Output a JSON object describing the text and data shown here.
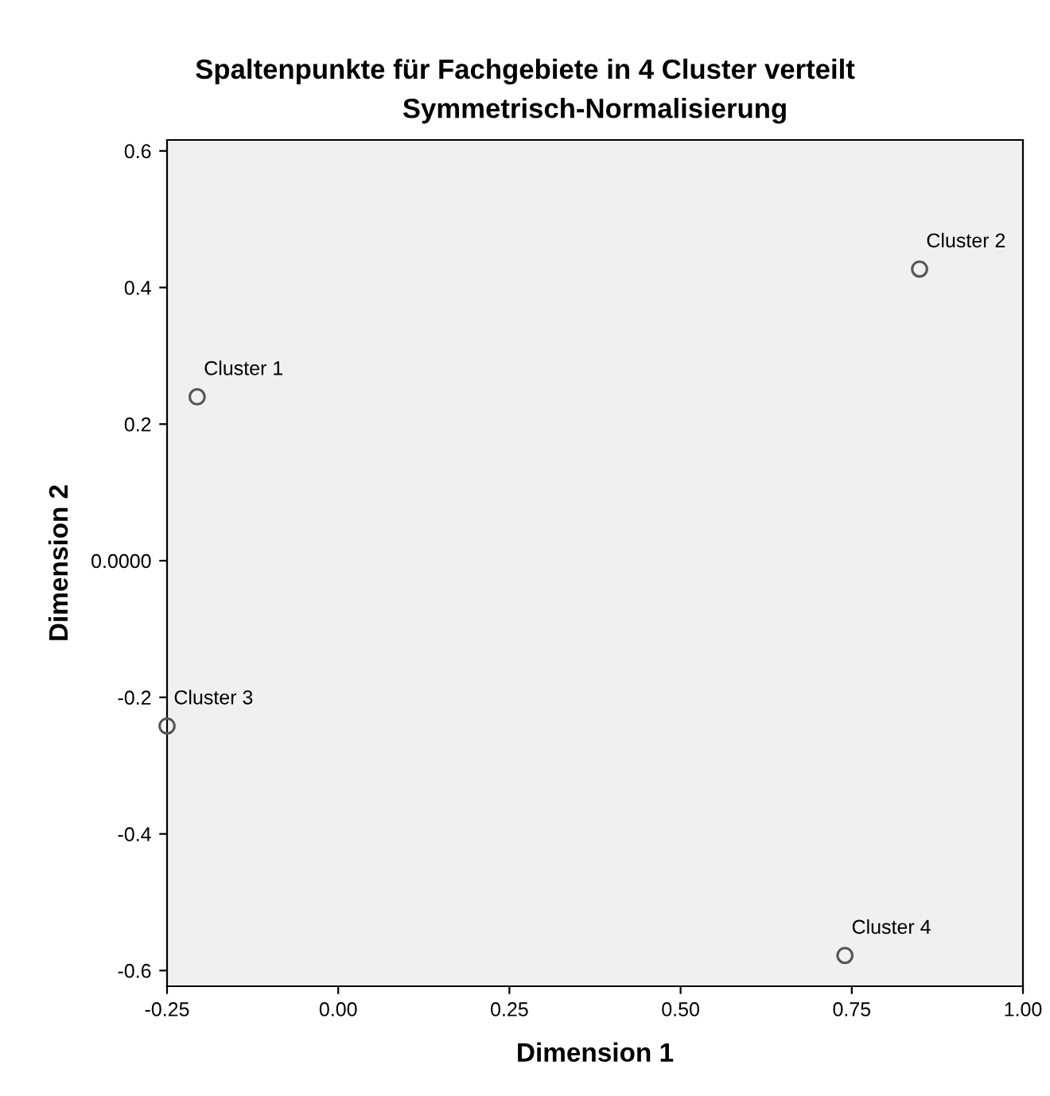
{
  "chart_data": {
    "type": "scatter",
    "title": "Spaltenpunkte für Fachgebiete in 4 Cluster verteilt",
    "subtitle": "Symmetrisch-Normalisierung",
    "xlabel": "Dimension 1",
    "ylabel": "Dimension 2",
    "x": [
      -0.206,
      0.849,
      -0.25,
      0.74
    ],
    "series": [
      {
        "color": "#555555",
        "values": [
          0.24,
          0.427,
          -0.242,
          -0.578
        ]
      }
    ],
    "annotations": [
      {
        "text": "Cluster 1",
        "x": -0.206,
        "y": 0.24
      },
      {
        "text": "Cluster 2",
        "x": 0.849,
        "y": 0.427
      },
      {
        "text": "Cluster 3",
        "x": -0.25,
        "y": -0.242
      },
      {
        "text": "Cluster 4",
        "x": 0.74,
        "y": -0.578
      }
    ],
    "xlim": [
      -0.25,
      1.0
    ],
    "ylim": [
      -0.623,
      0.616
    ],
    "xticks": [
      {
        "value": -0.25,
        "label": "-0.25"
      },
      {
        "value": 0,
        "label": "0.00"
      },
      {
        "value": 0.25,
        "label": "0.25"
      },
      {
        "value": 0.5,
        "label": "0.50"
      },
      {
        "value": 0.75,
        "label": "0.75"
      },
      {
        "value": 1.0,
        "label": "1.00"
      }
    ],
    "yticks": [
      {
        "value": -0.6,
        "label": "-0.6"
      },
      {
        "value": -0.4,
        "label": "-0.4"
      },
      {
        "value": -0.2,
        "label": "-0.2"
      },
      {
        "value": 0,
        "label": "0.0000"
      },
      {
        "value": 0.2,
        "label": "0.2"
      },
      {
        "value": 0.4,
        "label": "0.4"
      },
      {
        "value": 0.6,
        "label": "0.6"
      }
    ],
    "grid": false,
    "legend": false,
    "marker": "circle"
  }
}
